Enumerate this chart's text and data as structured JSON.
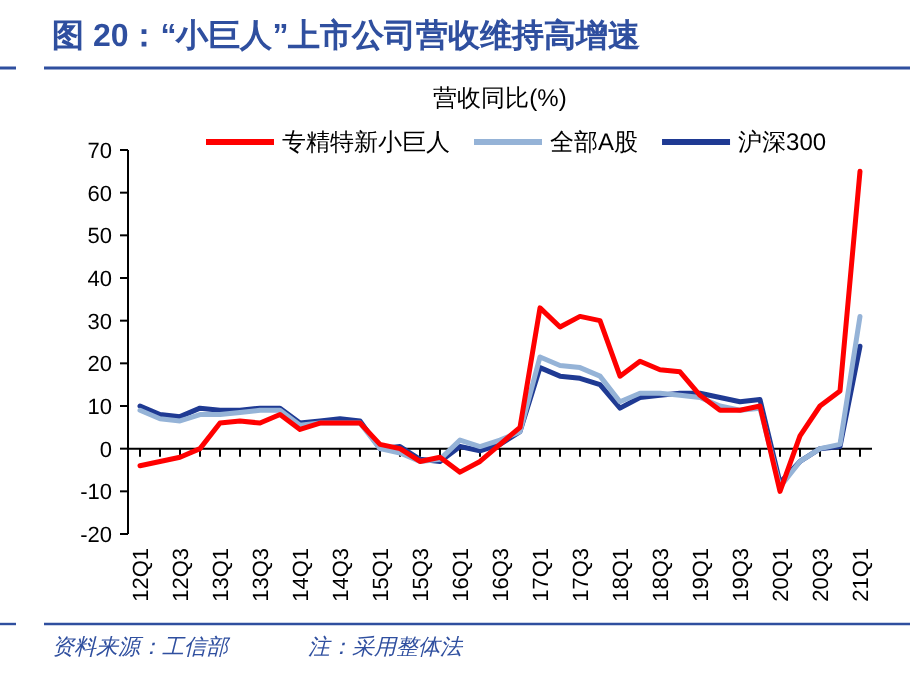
{
  "chart_data": {
    "type": "line",
    "title": "图 20：“小巨人”上市公司营收维持高增速",
    "subtitle": "营收同比(%)",
    "categories": [
      "12Q1",
      null,
      "12Q3",
      null,
      "13Q1",
      null,
      "13Q3",
      null,
      "14Q1",
      null,
      "14Q3",
      null,
      "15Q1",
      null,
      "15Q3",
      null,
      "16Q1",
      null,
      "16Q3",
      null,
      "17Q1",
      null,
      "17Q3",
      null,
      "18Q1",
      null,
      "18Q3",
      null,
      "19Q1",
      null,
      "19Q3",
      null,
      "20Q1",
      null,
      "20Q3",
      null,
      "21Q1"
    ],
    "series": [
      {
        "name": "专精特新小巨人",
        "color": "#ff0000",
        "values": [
          -4,
          -3,
          -2,
          0,
          6,
          6.5,
          6,
          8,
          4.5,
          6,
          6,
          6,
          1,
          0,
          -3,
          -2,
          -5.5,
          -3,
          1,
          5,
          33,
          28.5,
          31,
          30,
          17,
          20.5,
          18.5,
          18,
          12.5,
          9,
          9,
          10,
          -10,
          3,
          10,
          13.5,
          65
        ]
      },
      {
        "name": "全部A股",
        "color": "#95b3d7",
        "values": [
          9,
          7,
          6.5,
          8,
          8,
          8.5,
          9,
          9,
          5.5,
          6,
          6,
          6,
          0,
          -1,
          -3,
          -2.5,
          2,
          0.5,
          2,
          4,
          21.5,
          19.5,
          19,
          17,
          11,
          13,
          13,
          12.5,
          12,
          10,
          9,
          9.5,
          -9,
          -3,
          0,
          1,
          31
        ]
      },
      {
        "name": "沪深300",
        "color": "#1f3a93",
        "values": [
          10,
          8,
          7.5,
          9.5,
          9,
          9,
          9.5,
          9.5,
          6,
          6.5,
          7,
          6.5,
          0,
          0.5,
          -2.5,
          -3,
          0.5,
          -0.5,
          1,
          4,
          19,
          17,
          16.5,
          15,
          9.5,
          12,
          12.5,
          13,
          13,
          12,
          11,
          11.5,
          -8,
          -3,
          0,
          0.5,
          24
        ]
      }
    ],
    "ylim": [
      -20,
      70
    ],
    "yticks": [
      -20,
      -10,
      0,
      10,
      20,
      30,
      40,
      50,
      60,
      70
    ],
    "legend": "top",
    "annotations": [
      "资料来源：工信部",
      "注：采用整体法"
    ]
  }
}
